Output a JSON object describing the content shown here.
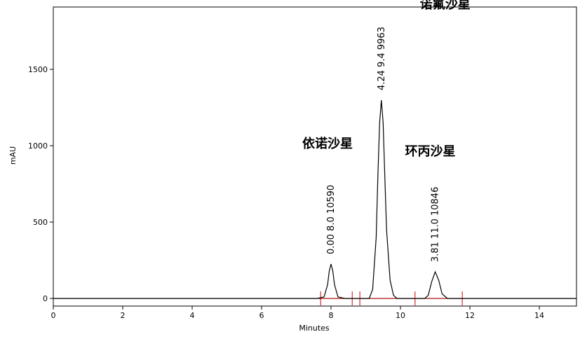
{
  "chart_data": {
    "type": "line",
    "x_label": "Minutes",
    "y_label": "mAU",
    "x": [
      0,
      7.6,
      7.8,
      7.9,
      7.95,
      8.0,
      8.05,
      8.1,
      8.2,
      8.4,
      9.1,
      9.2,
      9.3,
      9.35,
      9.4,
      9.45,
      9.5,
      9.55,
      9.6,
      9.7,
      9.8,
      9.9,
      10.7,
      10.8,
      10.9,
      11.0,
      11.1,
      11.2,
      11.35,
      15.07
    ],
    "series": [
      {
        "color": "#000000",
        "values": [
          0,
          0,
          10,
          90,
          180,
          225,
          180,
          90,
          10,
          0,
          0,
          60,
          400,
          800,
          1150,
          1298,
          1150,
          800,
          450,
          120,
          20,
          0,
          0,
          20,
          110,
          174,
          120,
          30,
          0,
          0
        ]
      }
    ],
    "integration_events": [
      7.7,
      8.61,
      8.83,
      10.42,
      11.78
    ],
    "integration_color": "#cc0000",
    "annotations": [
      {
        "x": 8.0,
        "text": "0.00 8.0 10590",
        "name": "依诺沙星"
      },
      {
        "x": 9.45,
        "text": "4.24 9.4 9963",
        "name": "诺氟沙星"
      },
      {
        "x": 11.0,
        "text": "3.81 11.0 10846",
        "name": "环丙沙星"
      }
    ],
    "xlim": [
      0,
      15.07
    ],
    "ylim": [
      -50,
      1908
    ],
    "xticks": [
      0,
      2,
      4,
      6,
      8,
      10,
      12,
      14
    ],
    "yticks": [
      0,
      500,
      1000,
      1500
    ]
  }
}
